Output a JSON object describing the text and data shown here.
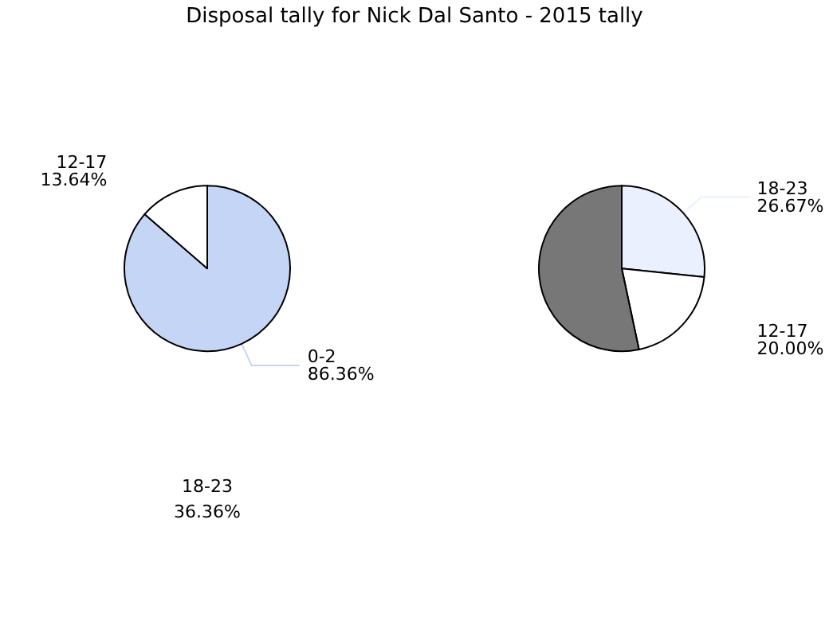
{
  "chart_data": [
    {
      "type": "pie",
      "title": "Disposal tally for Nick Dal Santo - 2015 tally",
      "categories": [
        "0-2",
        "12-17"
      ],
      "values": [
        86.36,
        13.64
      ],
      "value_labels": [
        "86.36%",
        "13.64%"
      ],
      "colors": [
        "#c4d5f5",
        "#ffffff"
      ],
      "annotations": [
        "18-23",
        "36.36%"
      ]
    },
    {
      "type": "pie",
      "categories": [
        "18-23",
        "12-17",
        null
      ],
      "values": [
        26.67,
        20.0,
        53.33
      ],
      "value_labels": [
        "26.67%",
        "20.00%",
        null
      ],
      "colors": [
        "#eaf0fd",
        "#ffffff",
        "#777777"
      ]
    }
  ]
}
